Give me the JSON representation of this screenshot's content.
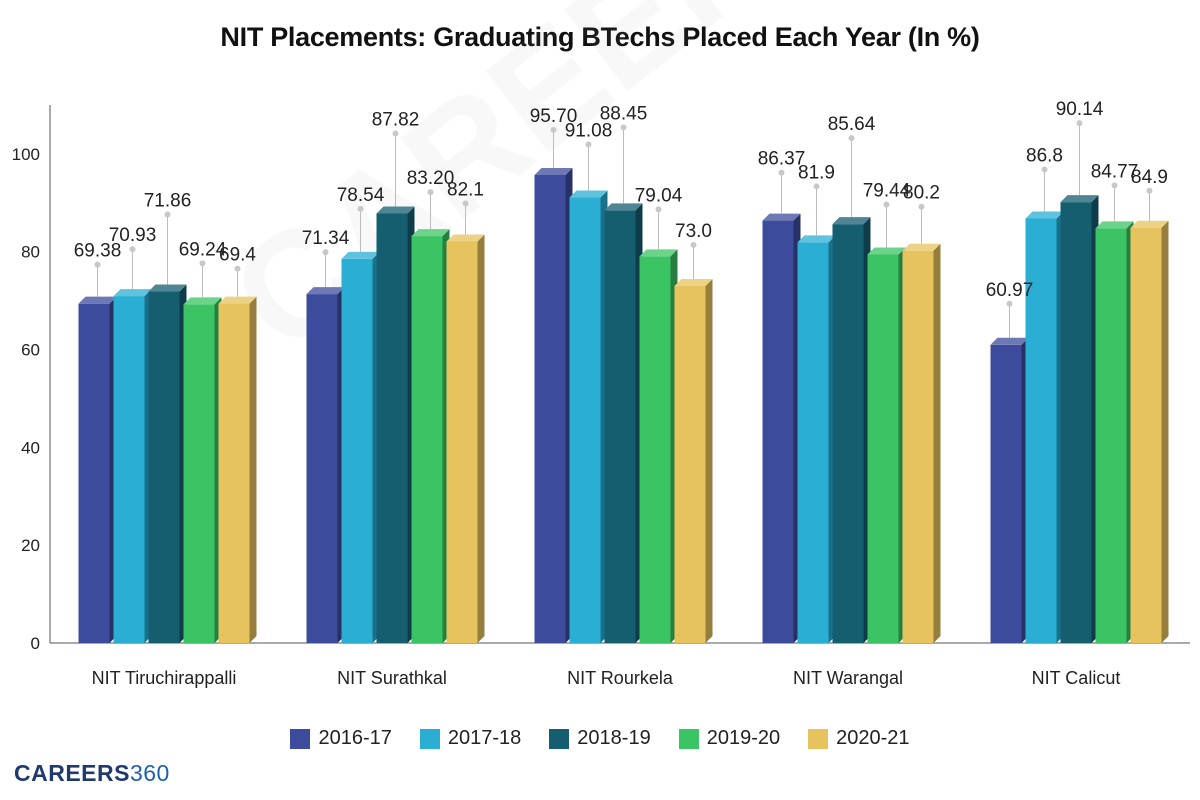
{
  "chart_data": {
    "type": "bar",
    "title": "NIT Placements: Graduating BTechs Placed Each Year (In %)",
    "xlabel": "",
    "ylabel": "",
    "ylim": [
      0,
      110
    ],
    "yticks": [
      0,
      20,
      40,
      60,
      80,
      100
    ],
    "grid": false,
    "legend_position": "bottom",
    "categories": [
      "NIT Tiruchirappalli",
      "NIT Surathkal",
      "NIT Rourkela",
      "NIT Warangal",
      "NIT Calicut"
    ],
    "series": [
      {
        "name": "2016-17",
        "color": "#3d4b9c",
        "values": [
          69.38,
          71.34,
          95.7,
          86.37,
          60.97
        ],
        "labels": [
          "69.38",
          "71.34",
          "95.70",
          "86.37",
          "60.97"
        ]
      },
      {
        "name": "2017-18",
        "color": "#2aaed4",
        "values": [
          70.93,
          78.54,
          91.08,
          81.9,
          86.8
        ],
        "labels": [
          "70.93",
          "78.54",
          "91.08",
          "81.9",
          "86.8"
        ]
      },
      {
        "name": "2018-19",
        "color": "#155e70",
        "values": [
          71.86,
          87.82,
          88.45,
          85.64,
          90.14
        ],
        "labels": [
          "71.86",
          "87.82",
          "88.45",
          "85.64",
          "90.14"
        ]
      },
      {
        "name": "2019-20",
        "color": "#3bc463",
        "values": [
          69.24,
          83.2,
          79.04,
          79.44,
          84.77
        ],
        "labels": [
          "69.24",
          "83.20",
          "79.04",
          "79.44",
          "84.77"
        ]
      },
      {
        "name": "2020-21",
        "color": "#e6c35c",
        "values": [
          69.4,
          82.1,
          73.0,
          80.2,
          84.9
        ],
        "labels": [
          "69.4",
          "82.1",
          "73.0",
          "80.2",
          "84.9"
        ]
      }
    ]
  },
  "brand": {
    "text": "CAREERS",
    "number": "360"
  },
  "watermark": "CAREERS360"
}
